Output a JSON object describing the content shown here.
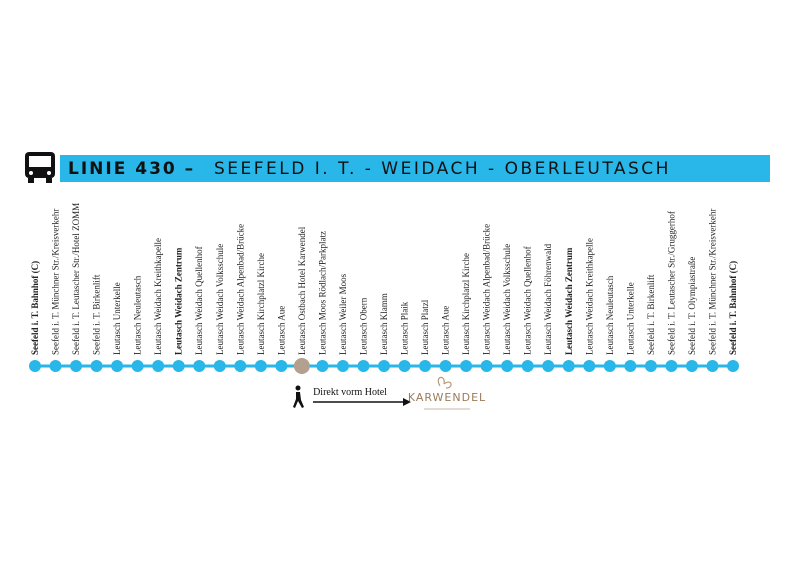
{
  "header": {
    "line": "LINIE 430 –",
    "route": "SEEFELD I. T. - WEIDACH - OBERLEUTASCH"
  },
  "stops": [
    {
      "label": "Seefeld i. T. Bahnhof (C)",
      "bold": true
    },
    {
      "label": "Seefeld i. T. Münchner Str./Kreisverkehr"
    },
    {
      "label": "Seefeld i. T. Leutascher Str./Hotel ZOMM"
    },
    {
      "label": "Seefeld i. T. Birkenlift"
    },
    {
      "label": "Leutasch Unterkelle"
    },
    {
      "label": "Leutasch Neuleutasch"
    },
    {
      "label": "Leutasch Weidach Kreithkapelle"
    },
    {
      "label": "Leutasch Weidach Zentrum",
      "bold": true
    },
    {
      "label": "Leutasch Weidach Quellenhof"
    },
    {
      "label": "Leutasch Weidach Volksschule"
    },
    {
      "label": "Leutasch Weidach Alpenbad/Brücke"
    },
    {
      "label": "Leutasch Kirchplatzl Kirche"
    },
    {
      "label": "Leutasch Aue"
    },
    {
      "label": "Leutasch Ostbach Hotel Karwendel",
      "highlight": true
    },
    {
      "label": "Leutasch Moos Rödlach/Parkplatz"
    },
    {
      "label": "Leutasch Weiler Moos"
    },
    {
      "label": "Leutasch Obern"
    },
    {
      "label": "Leutasch Klamm"
    },
    {
      "label": "Leutasch Plaik"
    },
    {
      "label": "Leutasch Platzl"
    },
    {
      "label": "Leutasch Aue"
    },
    {
      "label": "Leutasch Kirchplatzl Kirche"
    },
    {
      "label": "Leutasch Weidach Alpenbad/Brücke"
    },
    {
      "label": "Leutasch Weidach Volksschule"
    },
    {
      "label": "Leutasch Weidach Quellenhof"
    },
    {
      "label": "Leutasch Weidach Föhrenwald"
    },
    {
      "label": "Leutasch Weidach Zentrum",
      "bold": true
    },
    {
      "label": "Leutasch Weidach Kreithkapelle"
    },
    {
      "label": "Leutasch Neuleutasch"
    },
    {
      "label": "Leutasch Unterkelle"
    },
    {
      "label": "Seefeld i. T. Birkenlift"
    },
    {
      "label": "Seefeld i. T. Leutascher Str./Gruggerhof"
    },
    {
      "label": "Seefeld i. T. Olympiastraße"
    },
    {
      "label": "Seefeld i. T. Münchner Str./Kreisverkehr"
    },
    {
      "label": "Seefeld i. T. Bahnhof (C)",
      "bold": true
    }
  ],
  "hotel_note": "Direkt vorm Hotel",
  "logo": "KARWENDEL"
}
